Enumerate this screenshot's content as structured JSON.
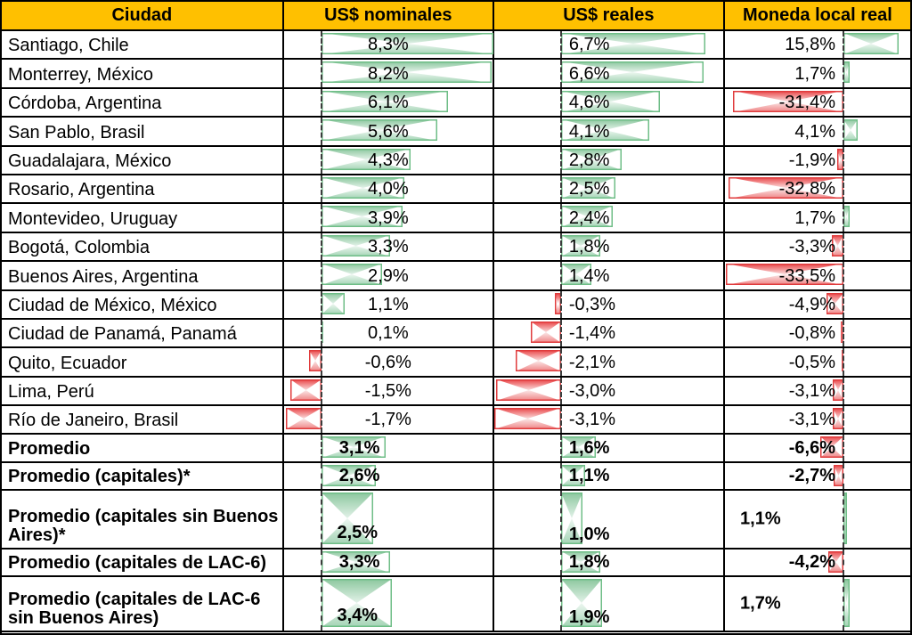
{
  "header": {
    "columns": [
      "Ciudad",
      "US$ nominales",
      "US$ reales",
      "Moneda local real"
    ]
  },
  "colors": {
    "header_bg": "#FFC000",
    "positive_bar_border": "#6FBE87",
    "negative_bar_border": "#E03B3C",
    "grid": "#000000",
    "axis_dash": "#3C3C3C"
  },
  "rows": [
    {
      "city": "Santiago, Chile",
      "labels": [
        "8,3%",
        "6,7%",
        "15,8%"
      ],
      "values": [
        8.3,
        6.7,
        15.8
      ],
      "bold": false,
      "tall": false
    },
    {
      "city": "Monterrey, México",
      "labels": [
        "8,2%",
        "6,6%",
        "1,7%"
      ],
      "values": [
        8.2,
        6.6,
        1.7
      ],
      "bold": false,
      "tall": false
    },
    {
      "city": "Córdoba, Argentina",
      "labels": [
        "6,1%",
        "4,6%",
        "-31,4%"
      ],
      "values": [
        6.1,
        4.6,
        -31.4
      ],
      "bold": false,
      "tall": false
    },
    {
      "city": "San Pablo, Brasil",
      "labels": [
        "5,6%",
        "4,1%",
        "4,1%"
      ],
      "values": [
        5.6,
        4.1,
        4.1
      ],
      "bold": false,
      "tall": false
    },
    {
      "city": "Guadalajara, México",
      "labels": [
        "4,3%",
        "2,8%",
        "-1,9%"
      ],
      "values": [
        4.3,
        2.8,
        -1.9
      ],
      "bold": false,
      "tall": false
    },
    {
      "city": "Rosario, Argentina",
      "labels": [
        "4,0%",
        "2,5%",
        "-32,8%"
      ],
      "values": [
        4.0,
        2.5,
        -32.8
      ],
      "bold": false,
      "tall": false
    },
    {
      "city": "Montevideo, Uruguay",
      "labels": [
        "3,9%",
        "2,4%",
        "1,7%"
      ],
      "values": [
        3.9,
        2.4,
        1.7
      ],
      "bold": false,
      "tall": false
    },
    {
      "city": "Bogotá, Colombia",
      "labels": [
        "3,3%",
        "1,8%",
        "-3,3%"
      ],
      "values": [
        3.3,
        1.8,
        -3.3
      ],
      "bold": false,
      "tall": false
    },
    {
      "city": "Buenos Aires, Argentina",
      "labels": [
        "2,9%",
        "1,4%",
        "-33,5%"
      ],
      "values": [
        2.9,
        1.4,
        -33.5
      ],
      "bold": false,
      "tall": false
    },
    {
      "city": "Ciudad de México, México",
      "labels": [
        "1,1%",
        "-0,3%",
        "-4,9%"
      ],
      "values": [
        1.1,
        -0.3,
        -4.9
      ],
      "bold": false,
      "tall": false
    },
    {
      "city": "Ciudad de Panamá, Panamá",
      "labels": [
        "0,1%",
        "-1,4%",
        "-0,8%"
      ],
      "values": [
        0.1,
        -1.4,
        -0.8
      ],
      "bold": false,
      "tall": false
    },
    {
      "city": "Quito, Ecuador",
      "labels": [
        "-0,6%",
        "-2,1%",
        "-0,5%"
      ],
      "values": [
        -0.6,
        -2.1,
        -0.5
      ],
      "bold": false,
      "tall": false
    },
    {
      "city": "Lima, Perú",
      "labels": [
        "-1,5%",
        "-3,0%",
        "-3,1%"
      ],
      "values": [
        -1.5,
        -3.0,
        -3.1
      ],
      "bold": false,
      "tall": false
    },
    {
      "city": "Río de Janeiro, Brasil",
      "labels": [
        "-1,7%",
        "-3,1%",
        "-3,1%"
      ],
      "values": [
        -1.7,
        -3.1,
        -3.1
      ],
      "bold": false,
      "tall": false
    },
    {
      "city": "Promedio",
      "labels": [
        "3,1%",
        "1,6%",
        "-6,6%"
      ],
      "values": [
        3.1,
        1.6,
        -6.6
      ],
      "bold": true,
      "tall": false
    },
    {
      "city": "Promedio (capitales)*",
      "labels": [
        "2,6%",
        "1,1%",
        "-2,7%"
      ],
      "values": [
        2.6,
        1.1,
        -2.7
      ],
      "bold": true,
      "tall": false
    },
    {
      "city": "Promedio (capitales sin Buenos Aires)*",
      "labels": [
        "2,5%",
        "1,0%",
        "1,1%"
      ],
      "values": [
        2.5,
        1.0,
        1.1
      ],
      "bold": true,
      "tall": true
    },
    {
      "city": "Promedio (capitales de LAC-6)",
      "labels": [
        "3,3%",
        "1,8%",
        "-4,2%"
      ],
      "values": [
        3.3,
        1.8,
        -4.2
      ],
      "bold": true,
      "tall": false
    },
    {
      "city": "Promedio (capitales de LAC-6 sin Buenos Aires)",
      "labels": [
        "3,4%",
        "1,9%",
        "1,7%"
      ],
      "values": [
        3.4,
        1.9,
        1.7
      ],
      "bold": true,
      "tall": true
    }
  ],
  "chart_data": {
    "type": "table",
    "title": "",
    "columns": [
      "Ciudad",
      "US$ nominales",
      "US$ reales",
      "Moneda local real"
    ],
    "categories": [
      "Santiago, Chile",
      "Monterrey, México",
      "Córdoba, Argentina",
      "San Pablo, Brasil",
      "Guadalajara, México",
      "Rosario, Argentina",
      "Montevideo, Uruguay",
      "Bogotá, Colombia",
      "Buenos Aires, Argentina",
      "Ciudad de México, México",
      "Ciudad de Panamá, Panamá",
      "Quito, Ecuador",
      "Lima, Perú",
      "Río de Janeiro, Brasil",
      "Promedio",
      "Promedio (capitales)*",
      "Promedio (capitales sin Buenos Aires)*",
      "Promedio (capitales de LAC-6)",
      "Promedio (capitales de LAC-6 sin Buenos Aires)"
    ],
    "series": [
      {
        "name": "US$ nominales",
        "values": [
          8.3,
          8.2,
          6.1,
          5.6,
          4.3,
          4.0,
          3.9,
          3.3,
          2.9,
          1.1,
          0.1,
          -0.6,
          -1.5,
          -1.7,
          3.1,
          2.6,
          2.5,
          3.3,
          3.4
        ]
      },
      {
        "name": "US$ reales",
        "values": [
          6.7,
          6.6,
          4.6,
          4.1,
          2.8,
          2.5,
          2.4,
          1.8,
          1.4,
          -0.3,
          -1.4,
          -2.1,
          -3.0,
          -3.1,
          1.6,
          1.1,
          1.0,
          1.8,
          1.9
        ]
      },
      {
        "name": "Moneda local real",
        "values": [
          15.8,
          1.7,
          -31.4,
          4.1,
          -1.9,
          -32.8,
          1.7,
          -3.3,
          -33.5,
          -4.9,
          -0.8,
          -0.5,
          -3.1,
          -3.1,
          -6.6,
          -2.7,
          1.1,
          -4.2,
          1.7
        ]
      }
    ],
    "value_format": "percent with comma decimal separator",
    "layout_hints": "in-cell data bars per column with dashed zero axis; green = positive, red = negative; bar length scaled to each column min/max"
  }
}
